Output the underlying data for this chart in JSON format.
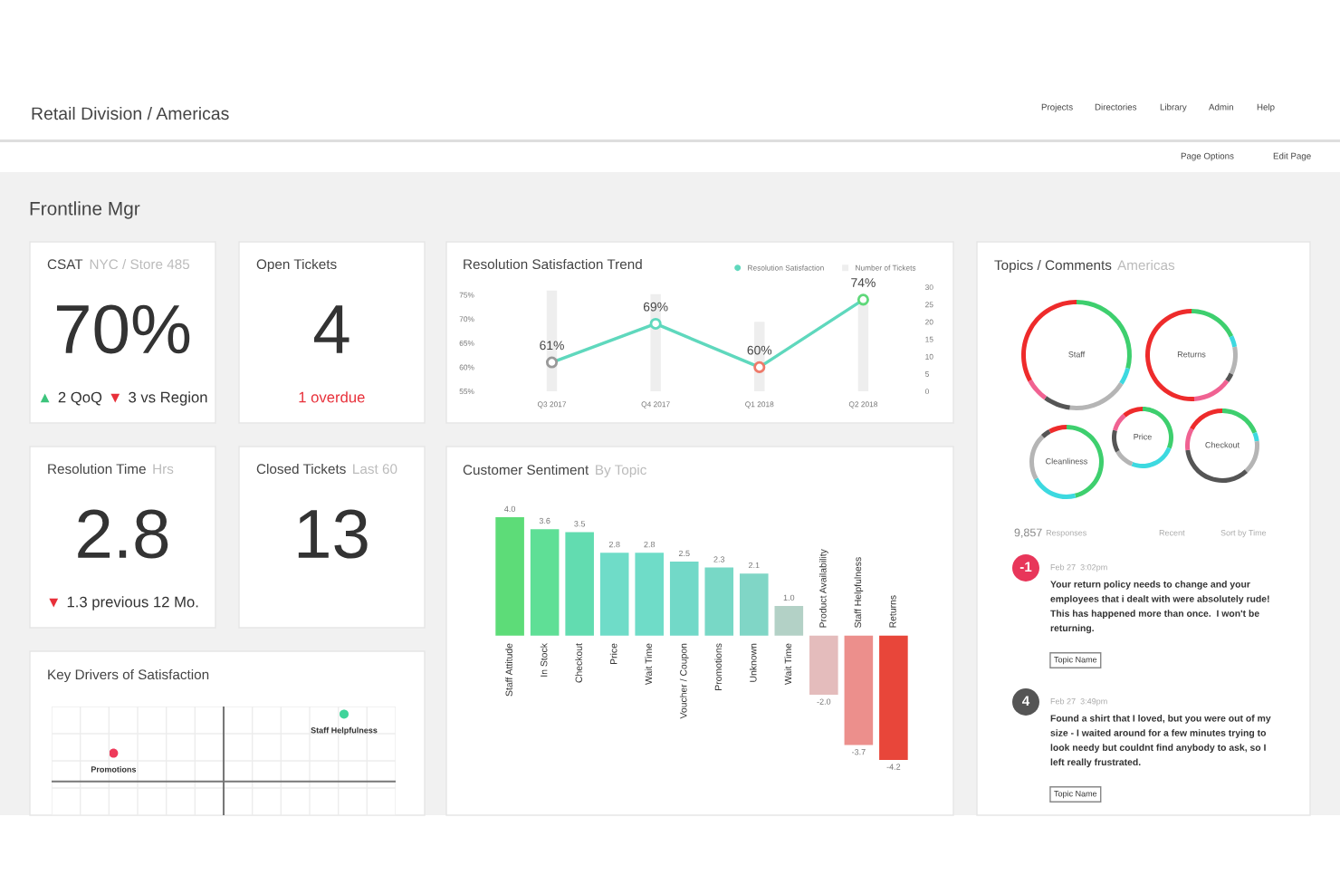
{
  "chart_data": [
    {
      "type": "other",
      "title": "Retail Division / Americas",
      "subtitle": "Frontline Mgr",
      "annotations": [
        "Projects",
        "Directories",
        "Library",
        "Admin",
        "Help",
        "Page Options",
        "Edit Page"
      ]
    },
    {
      "type": "other",
      "title": "CSAT",
      "subtitle": "NYC / Store 485",
      "annotations": [
        "70%",
        "▲",
        "2 QoQ",
        "▼",
        "3 vs Region"
      ],
      "colors": [
        "#333333",
        "#3cc47c",
        "#333333",
        "#e8303a",
        "#333333"
      ]
    },
    {
      "type": "other",
      "title": "Open Tickets",
      "annotations": [
        "4",
        "1 overdue"
      ],
      "colors": [
        "#333333",
        "#e8303a"
      ]
    },
    {
      "type": "line",
      "title": "Resolution Satisfaction Trend",
      "categories": [
        "Q3 2017",
        "Q4 2017",
        "Q1 2018",
        "Q2 2018"
      ],
      "series": [
        {
          "name": "Resolution Satisfaction",
          "type": "line",
          "color": "#5fd8bd",
          "colors": [
            "#999999",
            "#5fd8bd",
            "#ee7a6a",
            "#5fd87a"
          ],
          "values": [
            61,
            69,
            60,
            74
          ],
          "value_labels": [
            "61%",
            "69%",
            "60%",
            "74%"
          ]
        },
        {
          "name": "Number of Tickets",
          "type": "bar",
          "axis": "y2",
          "color": "#eeeeee",
          "values": [
            29,
            28,
            20,
            25
          ]
        }
      ],
      "ylim": [
        55,
        76.6
      ],
      "yticks": [
        {
          "value": 55,
          "label": "55%"
        },
        {
          "value": 60,
          "label": "60%"
        },
        {
          "value": 65,
          "label": "65%"
        },
        {
          "value": 70,
          "label": "70%"
        },
        {
          "value": 75,
          "label": "75%"
        }
      ],
      "y2lim": [
        0,
        30
      ],
      "y2ticks": [
        0,
        5,
        10,
        15,
        20,
        25,
        30
      ],
      "marker": "circle",
      "legend": "top right"
    },
    {
      "type": "other",
      "title": "Topics / Comments",
      "subtitle": "Americas"
    },
    {
      "type": "donut",
      "categories": [
        null,
        null,
        null,
        null,
        null,
        null
      ],
      "values": [
        29,
        5,
        18,
        8,
        7,
        33
      ],
      "colors": [
        "#3ecf6e",
        "#3dd9e0",
        "#b5b5b5",
        "#555555",
        "#f06292",
        "#ee2b2b"
      ],
      "annotations": [
        "Staff"
      ]
    },
    {
      "type": "donut",
      "categories": [
        null,
        null,
        null,
        null,
        null,
        null
      ],
      "values": [
        18,
        4,
        10,
        3,
        14,
        51
      ],
      "colors": [
        "#3ecf6e",
        "#3dd9e0",
        "#b5b5b5",
        "#555555",
        "#f06292",
        "#ee2b2b"
      ],
      "annotations": [
        "Returns"
      ]
    },
    {
      "type": "donut",
      "categories": [
        null,
        null,
        null,
        null,
        null,
        null
      ],
      "values": [
        31,
        25,
        11,
        12,
        10,
        11
      ],
      "colors": [
        "#3ecf6e",
        "#3dd9e0",
        "#b5b5b5",
        "#555555",
        "#f06292",
        "#ee2b2b"
      ],
      "annotations": [
        "Price"
      ]
    },
    {
      "type": "donut",
      "categories": [
        null,
        null,
        null,
        null,
        null,
        null
      ],
      "values": [
        19,
        4,
        15,
        35,
        10,
        17
      ],
      "colors": [
        "#3ecf6e",
        "#3dd9e0",
        "#b5b5b5",
        "#555555",
        "#f06292",
        "#ee2b2b"
      ],
      "annotations": [
        "Checkout"
      ]
    },
    {
      "type": "donut",
      "categories": [
        null,
        null,
        null,
        null,
        null
      ],
      "values": [
        46,
        21,
        21,
        4,
        8
      ],
      "colors": [
        "#3ecf6e",
        "#3dd9e0",
        "#b5b5b5",
        "#555555",
        "#ee2b2b"
      ],
      "annotations": [
        "Cleanliness"
      ]
    },
    {
      "type": "other",
      "title": "Resolution Time",
      "subtitle": "Hrs",
      "annotations": [
        "2.8",
        "▼",
        "1.3 previous 12 Mo."
      ],
      "colors": [
        "#333333",
        "#e8303a",
        "#333333"
      ]
    },
    {
      "type": "other",
      "title": "Closed Tickets",
      "subtitle": "Last 60",
      "annotations": [
        "13"
      ],
      "colors": [
        "#333333"
      ]
    },
    {
      "type": "bar",
      "title": "Customer Sentiment",
      "subtitle": "By Topic",
      "categories": [
        "Staff Attitude",
        "In Stock",
        "Checkout",
        "Price",
        "Wait Time",
        "Voucher / Coupon",
        "Promotions",
        "Unknown",
        "Wait Time",
        "Product Availability",
        "Staff Helpfulness",
        "Returns"
      ],
      "values": [
        4.0,
        3.6,
        3.5,
        2.8,
        2.8,
        2.5,
        2.3,
        2.1,
        1.0,
        -2.0,
        -3.7,
        -4.2
      ],
      "value_labels": [
        "4.0",
        "3.6",
        "3.5",
        "2.8",
        "2.8",
        "2.5",
        "2.3",
        "2.1",
        "1.0",
        "-2.0",
        "-3.7",
        "-4.2"
      ],
      "colors": [
        "#5ddc78",
        "#5fdf96",
        "#62dcb0",
        "#6fdcc8",
        "#6fdcc8",
        "#72d9c8",
        "#78d8c6",
        "#80d6c6",
        "#b3d1c6",
        "#e4bcbc",
        "#ec8f8c",
        "#e8463a"
      ]
    },
    {
      "type": "other",
      "title": "Key Drivers of Satisfaction",
      "annotations": [
        "Staff Helpfulness",
        "Promotions"
      ],
      "colors": [
        "#3fd49a",
        "#ee3a5a"
      ]
    },
    {
      "type": "other",
      "annotations": [
        "9,857",
        "Responses",
        "Recent",
        "Sort by Time",
        "-1",
        "Feb 27  3:02pm",
        "Your return policy needs to change and your\nemployees that i dealt with were absolutely rude!\nThis has happened more than once.  I won't be\nreturning.",
        "Topic Name",
        "4",
        "Feb 27  3:49pm",
        "Found a shirt that I loved, but you were out of my\nsize - I waited around for a few minutes trying to\nlook needy but couldnt find anybody to ask, so I\nleft really frustrated.",
        "Topic Name"
      ],
      "colors": [
        "#888888",
        "#aaaaaa",
        "#aaaaaa",
        "#aaaaaa",
        "#e8365a",
        "#aaaaaa",
        "#333333",
        "#333333",
        "#555555",
        "#aaaaaa",
        "#333333",
        "#333333"
      ]
    }
  ]
}
